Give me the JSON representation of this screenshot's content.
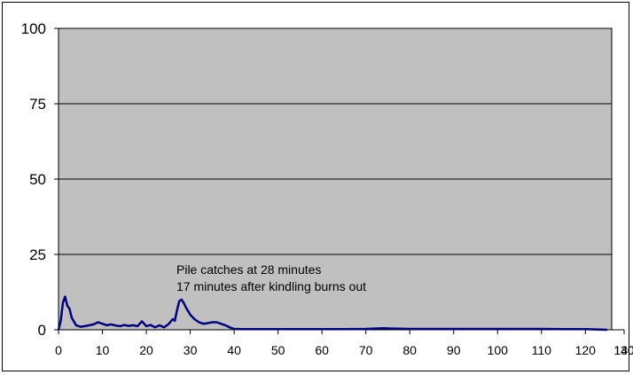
{
  "chart_data": {
    "type": "line",
    "title": "",
    "xlabel": "",
    "ylabel": "",
    "xlim": [
      0,
      140
    ],
    "ylim": [
      0,
      100
    ],
    "x_ticks": [
      0,
      10,
      20,
      30,
      40,
      50,
      60,
      70,
      80,
      90,
      100,
      110,
      120,
      130,
      140
    ],
    "x_tick_labels": [
      "0",
      "10",
      "20",
      "30",
      "40",
      "50",
      "60",
      "70",
      "80",
      "90",
      "100",
      "110",
      "120",
      "130",
      "140"
    ],
    "y_ticks": [
      0,
      25,
      50,
      75,
      100
    ],
    "y_tick_labels": [
      "0",
      "25",
      "50",
      "75",
      "100"
    ],
    "grid": "horizontal",
    "legend": "none",
    "plot_background": "#c0c0c0",
    "series": [
      {
        "color": "#000080",
        "x": [
          0,
          0.5,
          1,
          1.5,
          2,
          2.5,
          3,
          4,
          5,
          6,
          7,
          8,
          9,
          10,
          11,
          12,
          13,
          14,
          15,
          16,
          17,
          18,
          19,
          19.5,
          20,
          21,
          22,
          23,
          24,
          25,
          26,
          26.5,
          27,
          27.5,
          28,
          28.5,
          29,
          30,
          31,
          32,
          33,
          34,
          35,
          36,
          37,
          38,
          39,
          40,
          42,
          45,
          50,
          55,
          60,
          65,
          70,
          72,
          74,
          76,
          80,
          85,
          90,
          95,
          100,
          105,
          110,
          115,
          120,
          125
        ],
        "y": [
          0,
          3,
          9,
          11,
          8,
          7,
          4,
          1.5,
          1,
          1.2,
          1.5,
          1.8,
          2.5,
          2,
          1.5,
          1.8,
          1.4,
          1.2,
          1.6,
          1.3,
          1.5,
          1.2,
          2.8,
          2,
          1.2,
          1.6,
          0.8,
          1.5,
          0.8,
          1.8,
          3.5,
          3,
          6.5,
          9.5,
          10,
          9,
          7.5,
          5,
          3.5,
          2.5,
          2,
          2.2,
          2.5,
          2.5,
          2,
          1.5,
          0.8,
          0.3,
          0.2,
          0.2,
          0.2,
          0.2,
          0.2,
          0.2,
          0.3,
          0.4,
          0.5,
          0.4,
          0.3,
          0.3,
          0.3,
          0.3,
          0.3,
          0.3,
          0.3,
          0.2,
          0.2,
          0
        ]
      }
    ],
    "annotations": [
      "Pile catches at 28 minutes",
      "17 minutes after kindling burns out"
    ]
  }
}
